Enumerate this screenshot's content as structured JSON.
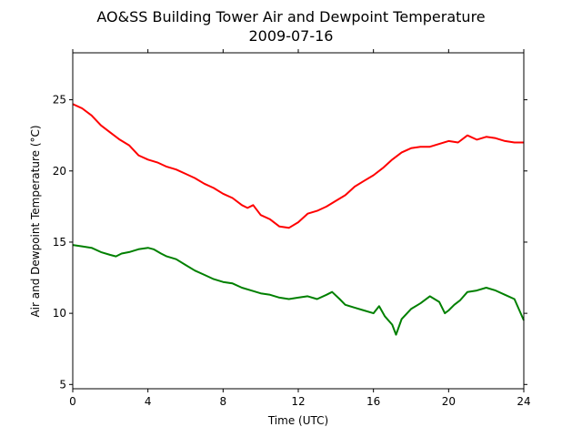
{
  "chart_data": {
    "type": "line",
    "title": "AO&SS Building Tower Air and Dewpoint Temperature",
    "subtitle": "2009-07-16",
    "xlabel": "Time (UTC)",
    "ylabel": "Air and Dewpoint Temperature (°C)",
    "xlim": [
      0,
      24
    ],
    "ylim": [
      4.7,
      28.3
    ],
    "xticks": [
      0,
      4,
      8,
      12,
      16,
      20,
      24
    ],
    "yticks": [
      5,
      10,
      15,
      20,
      25
    ],
    "grid": false,
    "legend": "none",
    "series": [
      {
        "color": "#ff0000",
        "x": [
          0,
          0.5,
          1,
          1.5,
          2,
          2.5,
          3,
          3.5,
          4,
          4.5,
          5,
          5.5,
          6,
          6.5,
          7,
          7.5,
          8,
          8.5,
          9,
          9.3,
          9.6,
          10,
          10.5,
          11,
          11.5,
          12,
          12.5,
          13,
          13.5,
          14,
          14.5,
          15,
          15.5,
          16,
          16.5,
          17,
          17.5,
          18,
          18.5,
          19,
          19.5,
          20,
          20.5,
          21,
          21.5,
          22,
          22.5,
          23,
          23.5,
          24
        ],
        "y": [
          24.7,
          24.4,
          23.9,
          23.2,
          22.7,
          22.2,
          21.8,
          21.1,
          20.8,
          20.6,
          20.3,
          20.1,
          19.8,
          19.5,
          19.1,
          18.8,
          18.4,
          18.1,
          17.6,
          17.4,
          17.6,
          16.9,
          16.6,
          16.1,
          16.0,
          16.4,
          17.0,
          17.2,
          17.5,
          17.9,
          18.3,
          18.9,
          19.3,
          19.7,
          20.2,
          20.8,
          21.3,
          21.6,
          21.7,
          21.7,
          21.9,
          22.1,
          22.0,
          22.5,
          22.2,
          22.4,
          22.3,
          22.1,
          22.0,
          22.0
        ]
      },
      {
        "color": "#008000",
        "x": [
          0,
          0.5,
          1,
          1.5,
          2,
          2.3,
          2.6,
          3,
          3.5,
          4,
          4.3,
          4.7,
          5,
          5.5,
          6,
          6.5,
          7,
          7.5,
          8,
          8.5,
          9,
          9.5,
          10,
          10.5,
          11,
          11.5,
          12,
          12.5,
          13,
          13.5,
          13.8,
          14.2,
          14.5,
          15,
          15.5,
          16,
          16.3,
          16.6,
          17,
          17.2,
          17.5,
          18,
          18.5,
          19,
          19.5,
          19.8,
          20,
          20.3,
          20.6,
          21,
          21.5,
          22,
          22.5,
          23,
          23.5,
          24
        ],
        "y": [
          14.8,
          14.7,
          14.6,
          14.3,
          14.1,
          14.0,
          14.2,
          14.3,
          14.5,
          14.6,
          14.5,
          14.2,
          14.0,
          13.8,
          13.4,
          13.0,
          12.7,
          12.4,
          12.2,
          12.1,
          11.8,
          11.6,
          11.4,
          11.3,
          11.1,
          11.0,
          11.1,
          11.2,
          11.0,
          11.3,
          11.5,
          11.0,
          10.6,
          10.4,
          10.2,
          10.0,
          10.5,
          9.8,
          9.2,
          8.5,
          9.6,
          10.3,
          10.7,
          11.2,
          10.8,
          10.0,
          10.2,
          10.6,
          10.9,
          11.5,
          11.6,
          11.8,
          11.6,
          11.3,
          11.0,
          9.5
        ]
      }
    ]
  }
}
